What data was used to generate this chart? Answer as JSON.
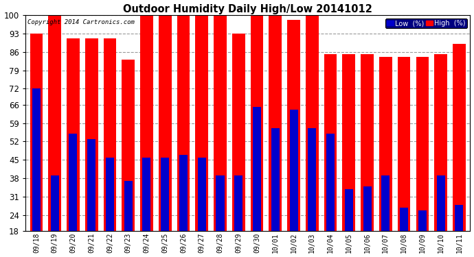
{
  "title": "Outdoor Humidity Daily High/Low 20141012",
  "copyright": "Copyright 2014 Cartronics.com",
  "categories": [
    "09/18",
    "09/19",
    "09/20",
    "09/21",
    "09/22",
    "09/23",
    "09/24",
    "09/25",
    "09/26",
    "09/27",
    "09/28",
    "09/29",
    "09/30",
    "10/01",
    "10/02",
    "10/03",
    "10/04",
    "10/05",
    "10/06",
    "10/07",
    "10/08",
    "10/09",
    "10/10",
    "10/11"
  ],
  "high": [
    93,
    100,
    91,
    91,
    91,
    83,
    100,
    100,
    100,
    100,
    100,
    93,
    100,
    100,
    98,
    100,
    85,
    85,
    85,
    84,
    84,
    84,
    85,
    89
  ],
  "low": [
    72,
    39,
    55,
    53,
    46,
    37,
    46,
    46,
    47,
    46,
    39,
    39,
    65,
    57,
    64,
    57,
    55,
    34,
    35,
    39,
    27,
    26,
    39,
    28
  ],
  "ylim": [
    18,
    100
  ],
  "yticks": [
    18,
    24,
    31,
    38,
    45,
    52,
    59,
    66,
    72,
    79,
    86,
    93,
    100
  ],
  "high_color": "#ff0000",
  "low_color": "#0000cc",
  "bg_color": "#ffffff",
  "grid_color": "#999999",
  "legend_low_label": "Low  (%)",
  "legend_high_label": "High  (%)"
}
